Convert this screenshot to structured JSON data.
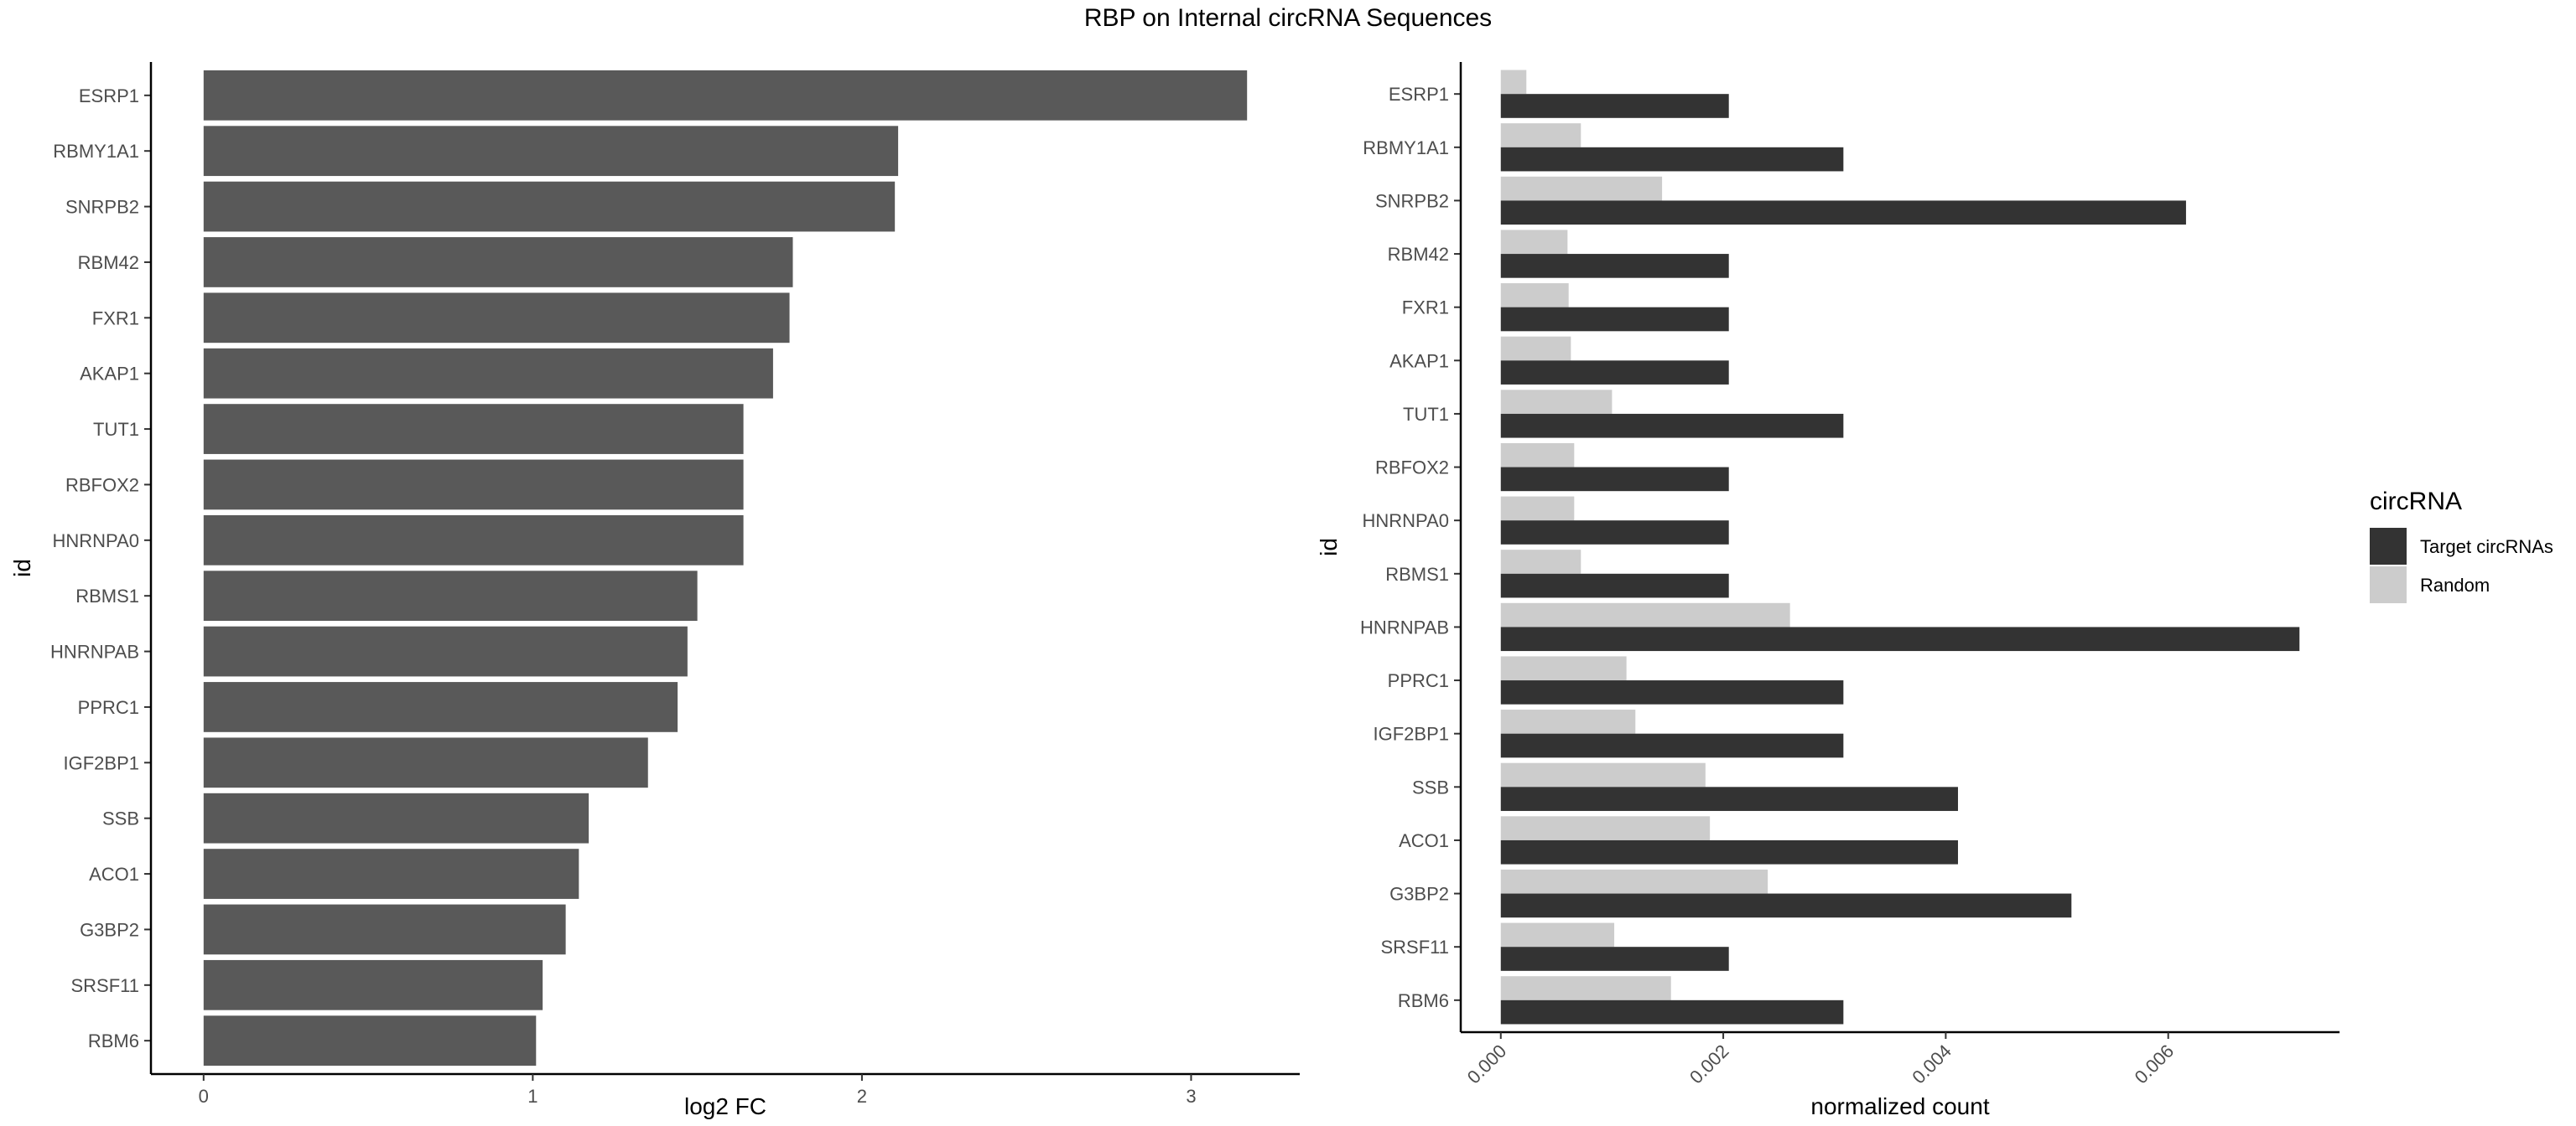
{
  "title": "RBP on Internal circRNA Sequences",
  "chart_data": [
    {
      "type": "bar",
      "orientation": "horizontal",
      "categories": [
        "ESRP1",
        "RBMY1A1",
        "SNRPB2",
        "RBM42",
        "FXR1",
        "AKAP1",
        "TUT1",
        "RBFOX2",
        "HNRNPA0",
        "RBMS1",
        "HNRNPAB",
        "PPRC1",
        "IGF2BP1",
        "SSB",
        "ACO1",
        "G3BP2",
        "SRSF11",
        "RBM6"
      ],
      "values": [
        3.17,
        2.11,
        2.1,
        1.79,
        1.78,
        1.73,
        1.64,
        1.64,
        1.64,
        1.5,
        1.47,
        1.44,
        1.35,
        1.17,
        1.14,
        1.1,
        1.03,
        1.01
      ],
      "xlabel": "log2 FC",
      "ylabel": "id",
      "xlim": [
        -0.16,
        3.33
      ],
      "xticks": [
        0,
        1,
        2,
        3
      ],
      "color": "#595959",
      "grid": false
    },
    {
      "type": "bar",
      "orientation": "horizontal",
      "categories": [
        "ESRP1",
        "RBMY1A1",
        "SNRPB2",
        "RBM42",
        "FXR1",
        "AKAP1",
        "TUT1",
        "RBFOX2",
        "HNRNPA0",
        "RBMS1",
        "HNRNPAB",
        "PPRC1",
        "IGF2BP1",
        "SSB",
        "ACO1",
        "G3BP2",
        "SRSF11",
        "RBM6"
      ],
      "series": [
        {
          "name": "Target circRNAs",
          "color": "#333333",
          "values": [
            0.00205,
            0.00308,
            0.00616,
            0.00205,
            0.00205,
            0.00205,
            0.00308,
            0.00205,
            0.00205,
            0.00205,
            0.00718,
            0.00308,
            0.00308,
            0.00411,
            0.00411,
            0.00513,
            0.00205,
            0.00308
          ]
        },
        {
          "name": "Random",
          "color": "#cccccc",
          "values": [
            0.00023,
            0.00072,
            0.00145,
            0.0006,
            0.00061,
            0.00063,
            0.001,
            0.00066,
            0.00066,
            0.00072,
            0.0026,
            0.00113,
            0.00121,
            0.00184,
            0.00188,
            0.0024,
            0.00102,
            0.00153
          ]
        }
      ],
      "xlabel": "normalized count",
      "ylabel": "id",
      "xlim": [
        -0.00036,
        0.00754
      ],
      "xticks": [
        0.0,
        0.002,
        0.004,
        0.006
      ],
      "xtick_labels": [
        "0.000",
        "0.002",
        "0.004",
        "0.006"
      ],
      "legend_title": "circRNA",
      "legend_position": "right",
      "grid": false
    }
  ]
}
